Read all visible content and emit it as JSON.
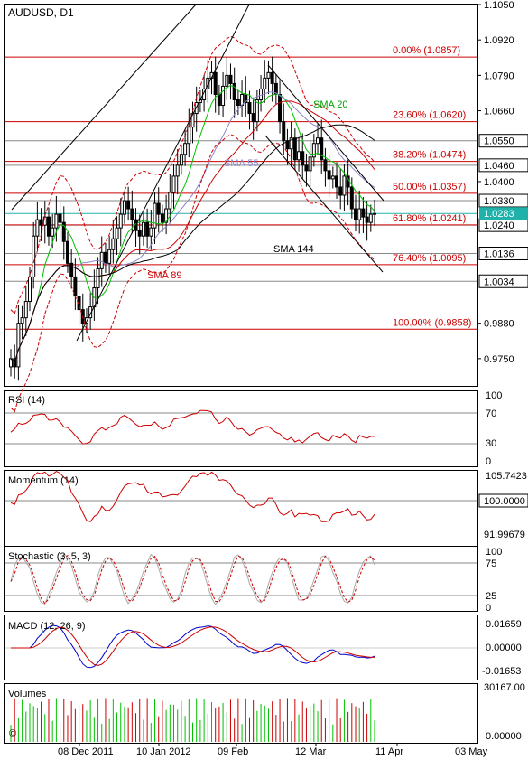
{
  "symbol": "AUDUSD, D1",
  "panels": {
    "rsi": {
      "label": "RSI (14)",
      "levels": [
        "100",
        "70",
        "30",
        "0"
      ]
    },
    "momentum": {
      "label": "Momentum (14)",
      "levels": [
        "105.7423",
        "100.0000",
        "91.99679"
      ]
    },
    "stochastic": {
      "label": "Stochastic (3, 5, 3)",
      "levels": [
        "100",
        "75",
        "25",
        "0"
      ]
    },
    "macd": {
      "label": "MACD (12, 26, 9)",
      "levels": [
        "0.01659",
        "0.00000",
        "-0.01653"
      ]
    },
    "volumes": {
      "label": "Volumes",
      "levels": [
        "30167.00",
        "0.00000"
      ]
    }
  },
  "indicator_labels": {
    "sma20": "SMA 20",
    "sma55": "SMA 55",
    "sma89": "SMA 89",
    "sma144": "SMA 144"
  },
  "colors": {
    "candle": "#000000",
    "sma20": "#00c000",
    "sma55": "#8888cc",
    "sma89": "#cc0000",
    "sma144": "#000000",
    "bollinger": "#cc0000",
    "fib": "#cc0000",
    "hline": "#888888",
    "current": "#20b2aa",
    "macd": "#0000cc",
    "signal": "#cc0000",
    "vol_up": "#00c000",
    "vol_down": "#cc0000"
  },
  "chart_data": {
    "type": "candlestick",
    "title": "AUDUSD, D1",
    "ylim": [
      0.965,
      1.105
    ],
    "price_ticks": [
      1.105,
      1.092,
      1.079,
      1.066,
      1.04,
      0.988,
      0.975
    ],
    "horizontal_levels": [
      {
        "value": 1.055,
        "label": "1.0550"
      },
      {
        "value": 1.046,
        "label": "1.0460"
      },
      {
        "value": 1.033,
        "label": "1.0330"
      },
      {
        "value": 1.024,
        "label": "1.0240"
      },
      {
        "value": 1.0136,
        "label": "1.0136"
      },
      {
        "value": 1.0034,
        "label": "1.0034"
      }
    ],
    "current_price": {
      "value": 1.0283,
      "label": "1.0283"
    },
    "fibonacci": [
      {
        "value": 1.0857,
        "label": "0.00% (1.0857)"
      },
      {
        "value": 1.062,
        "label": "23.60% (1.0620)"
      },
      {
        "value": 1.0474,
        "label": "38.20% (1.0474)"
      },
      {
        "value": 1.0357,
        "label": "50.00% (1.0357)"
      },
      {
        "value": 1.0241,
        "label": "61.80% (1.0241)"
      },
      {
        "value": 1.0095,
        "label": "76.40% (1.0095)"
      },
      {
        "value": 0.9858,
        "label": "100.00% (0.9858)"
      }
    ],
    "x_labels": [
      "08 Dec 2011",
      "10 Jan 2012",
      "09 Feb",
      "12 Mar",
      "11 Apr",
      "03 May"
    ],
    "closes": [
      0.975,
      0.972,
      0.988,
      0.99,
      0.996,
      1.005,
      1.02,
      1.026,
      1.024,
      1.027,
      1.02,
      1.023,
      1.028,
      1.025,
      1.018,
      1.01,
      1.005,
      0.998,
      0.993,
      0.988,
      0.99,
      0.994,
      1.001,
      1.008,
      1.014,
      1.01,
      1.015,
      1.019,
      1.023,
      1.028,
      1.033,
      1.03,
      1.026,
      1.022,
      1.02,
      1.025,
      1.02,
      1.023,
      1.032,
      1.028,
      1.025,
      1.03,
      1.036,
      1.042,
      1.046,
      1.05,
      1.054,
      1.06,
      1.065,
      1.069,
      1.07,
      1.074,
      1.078,
      1.08,
      1.072,
      1.068,
      1.075,
      1.079,
      1.076,
      1.07,
      1.068,
      1.072,
      1.069,
      1.065,
      1.062,
      1.07,
      1.074,
      1.078,
      1.08,
      1.076,
      1.072,
      1.062,
      1.055,
      1.052,
      1.056,
      1.048,
      1.051,
      1.046,
      1.044,
      1.049,
      1.054,
      1.056,
      1.048,
      1.044,
      1.041,
      1.042,
      1.038,
      1.035,
      1.042,
      1.038,
      1.03,
      1.026,
      1.03,
      1.027,
      1.025,
      1.028,
      1.0283
    ]
  }
}
